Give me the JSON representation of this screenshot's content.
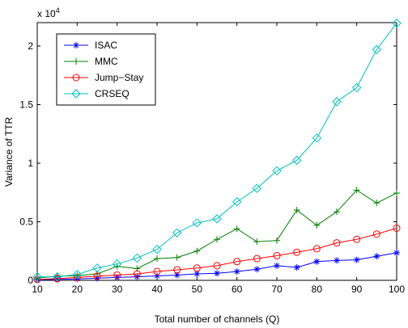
{
  "chart_data": {
    "type": "line",
    "title": "",
    "xlabel": "Total number of channels (Q)",
    "ylabel": "Variance of TTR",
    "y_multiplier_label": "x 10",
    "y_multiplier_exponent": "4",
    "xlim": [
      10,
      100
    ],
    "ylim": [
      0,
      22000
    ],
    "x_ticks": [
      10,
      20,
      30,
      40,
      50,
      60,
      70,
      80,
      90,
      100
    ],
    "y_ticks": [
      0,
      5000,
      10000,
      15000,
      20000
    ],
    "y_tick_labels": [
      "0",
      "0.5",
      "1",
      "1.5",
      "2"
    ],
    "grid": false,
    "legend_position": "top-left",
    "x": [
      10,
      15,
      20,
      25,
      30,
      35,
      40,
      45,
      50,
      55,
      60,
      65,
      70,
      75,
      80,
      85,
      90,
      95,
      100
    ],
    "series": [
      {
        "name": "ISAC",
        "color": "#0000ff",
        "marker": "asterisk",
        "values": [
          50,
          80,
          120,
          180,
          250,
          300,
          380,
          450,
          550,
          600,
          750,
          950,
          1250,
          1100,
          1600,
          1700,
          1750,
          2050,
          2350
        ]
      },
      {
        "name": "MMC",
        "color": "#007f00",
        "marker": "plus",
        "values": [
          200,
          350,
          400,
          550,
          1200,
          1000,
          1850,
          1950,
          2500,
          3500,
          4400,
          3300,
          3400,
          6000,
          4700,
          5850,
          7700,
          6600,
          7450
        ]
      },
      {
        "name": "Jump−Stay",
        "color": "#ff0000",
        "marker": "circle",
        "values": [
          80,
          150,
          250,
          350,
          450,
          550,
          750,
          900,
          1050,
          1250,
          1600,
          1850,
          2100,
          2400,
          2700,
          3200,
          3500,
          3950,
          4450
        ]
      },
      {
        "name": "CRSEQ",
        "color": "#00bfbf",
        "marker": "diamond",
        "values": [
          300,
          300,
          500,
          1050,
          1400,
          1900,
          2650,
          4050,
          4900,
          5250,
          6700,
          7850,
          9350,
          10250,
          12150,
          15250,
          16450,
          19700,
          21950
        ]
      }
    ]
  }
}
